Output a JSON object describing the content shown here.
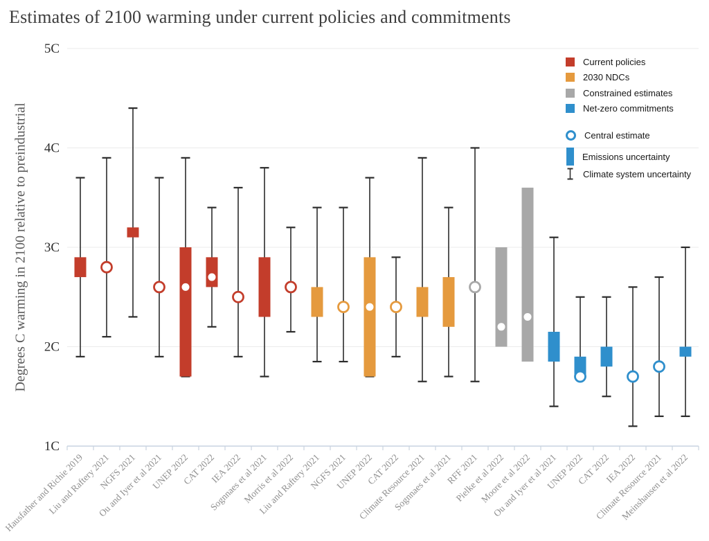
{
  "chart_data": {
    "type": "box-whisker",
    "title": "Estimates of 2100 warming under current policies and commitments",
    "ylabel": "Degrees C warming in 2100 relative to preindustrial",
    "ylim": [
      1,
      5
    ],
    "yticks": [
      {
        "value": 5,
        "label": "5C"
      },
      {
        "value": 4,
        "label": "4C"
      },
      {
        "value": 3,
        "label": "3C"
      },
      {
        "value": 2,
        "label": "2C"
      },
      {
        "value": 1,
        "label": "1C"
      }
    ],
    "grid": true,
    "legend_position": "top-right",
    "colors": {
      "whisker": "#2b2b2b",
      "gridline": "#ebebeb",
      "axis": "#c9d3e0",
      "dot": "#ffffff",
      "errorbar_icon": "#333333"
    },
    "groups": {
      "current_policies": {
        "label": "Current policies",
        "color": "#c33d2b"
      },
      "ndc": {
        "label": "2030 NDCs",
        "color": "#e59a3e"
      },
      "constrained": {
        "label": "Constrained estimates",
        "color": "#a8a8a8"
      },
      "netzero": {
        "label": "Net-zero commitments",
        "color": "#2f8fcc"
      }
    },
    "legend_extra": [
      {
        "label": "Central estimate",
        "marker": "open-circle"
      },
      {
        "label": "Emissions uncertainty",
        "marker": "emissions-bar"
      },
      {
        "label": "Climate system uncertainty",
        "marker": "error-bar"
      }
    ],
    "series": [
      {
        "label": "Hausfather and Richie 2019",
        "group": "current_policies",
        "whisker": [
          1.9,
          3.7
        ],
        "box": [
          2.7,
          2.9
        ],
        "central": null
      },
      {
        "label": "Liu and Raftery 2021",
        "group": "current_policies",
        "whisker": [
          2.1,
          3.9
        ],
        "box": null,
        "central": {
          "value": 2.8,
          "style": "open"
        }
      },
      {
        "label": "NGFS 2021",
        "group": "current_policies",
        "whisker": [
          2.3,
          4.4
        ],
        "box": [
          3.1,
          3.2
        ],
        "central": null
      },
      {
        "label": "Ou and Iyer et al 2021",
        "group": "current_policies",
        "whisker": [
          1.9,
          3.7
        ],
        "box": null,
        "central": {
          "value": 2.6,
          "style": "open"
        }
      },
      {
        "label": "UNEP 2022",
        "group": "current_policies",
        "whisker": [
          1.7,
          3.9
        ],
        "box": [
          1.7,
          3.0
        ],
        "central": {
          "value": 2.6,
          "style": "dot"
        }
      },
      {
        "label": "CAT 2022",
        "group": "current_policies",
        "whisker": [
          2.2,
          3.4
        ],
        "box": [
          2.6,
          2.9
        ],
        "central": {
          "value": 2.7,
          "style": "dot"
        }
      },
      {
        "label": "IEA 2022",
        "group": "current_policies",
        "whisker": [
          1.9,
          3.6
        ],
        "box": null,
        "central": {
          "value": 2.5,
          "style": "open"
        }
      },
      {
        "label": "Sognnaes et al 2021",
        "group": "current_policies",
        "whisker": [
          1.7,
          3.8
        ],
        "box": [
          2.3,
          2.9
        ],
        "central": null
      },
      {
        "label": "Morris et al 2022",
        "group": "current_policies",
        "whisker": [
          2.15,
          3.2
        ],
        "box": null,
        "central": {
          "value": 2.6,
          "style": "open"
        }
      },
      {
        "label": "Liu and Raftery 2021",
        "group": "ndc",
        "whisker": [
          1.85,
          3.4
        ],
        "box": [
          2.3,
          2.6
        ],
        "central": null
      },
      {
        "label": "NGFS 2021",
        "group": "ndc",
        "whisker": [
          1.85,
          3.4
        ],
        "box": null,
        "central": {
          "value": 2.4,
          "style": "open"
        }
      },
      {
        "label": "UNEP 2022",
        "group": "ndc",
        "whisker": [
          1.7,
          3.7
        ],
        "box": [
          1.7,
          2.9
        ],
        "central": {
          "value": 2.4,
          "style": "dot"
        }
      },
      {
        "label": "CAT 2022",
        "group": "ndc",
        "whisker": [
          1.9,
          2.9
        ],
        "box": null,
        "central": {
          "value": 2.4,
          "style": "open"
        }
      },
      {
        "label": "Climate Resource 2021",
        "group": "ndc",
        "whisker": [
          1.65,
          3.9
        ],
        "box": [
          2.3,
          2.6
        ],
        "central": null
      },
      {
        "label": "Sognnaes et al 2021",
        "group": "ndc",
        "whisker": [
          1.7,
          3.4
        ],
        "box": [
          2.2,
          2.7
        ],
        "central": null
      },
      {
        "label": "RFF 2021",
        "group": "constrained",
        "whisker": [
          1.65,
          4.0
        ],
        "box": null,
        "central": {
          "value": 2.6,
          "style": "open"
        }
      },
      {
        "label": "Pielke et al 2022",
        "group": "constrained",
        "whisker": null,
        "box": [
          2.0,
          3.0
        ],
        "central": {
          "value": 2.2,
          "style": "dot"
        }
      },
      {
        "label": "Moore et al 2022",
        "group": "constrained",
        "whisker": null,
        "box": [
          1.85,
          3.6
        ],
        "central": {
          "value": 2.3,
          "style": "dot"
        }
      },
      {
        "label": "Ou and Iyer et al 2021",
        "group": "netzero",
        "whisker": [
          1.4,
          3.1
        ],
        "box": [
          1.85,
          2.15
        ],
        "central": null
      },
      {
        "label": "UNEP 2022",
        "group": "netzero",
        "whisker": [
          1.7,
          2.5
        ],
        "box": [
          1.7,
          1.9
        ],
        "central": {
          "value": 1.7,
          "style": "open"
        }
      },
      {
        "label": "CAT 2022",
        "group": "netzero",
        "whisker": [
          1.5,
          2.5
        ],
        "box": [
          1.8,
          2.0
        ],
        "central": null
      },
      {
        "label": "IEA 2022",
        "group": "netzero",
        "whisker": [
          1.2,
          2.6
        ],
        "box": null,
        "central": {
          "value": 1.7,
          "style": "open"
        }
      },
      {
        "label": "Climate Resource 2021",
        "group": "netzero",
        "whisker": [
          1.3,
          2.7
        ],
        "box": null,
        "central": {
          "value": 1.8,
          "style": "open"
        }
      },
      {
        "label": "Meinshausen et al 2022",
        "group": "netzero",
        "whisker": [
          1.3,
          3.0
        ],
        "box": [
          1.9,
          2.0
        ],
        "central": null
      }
    ]
  }
}
